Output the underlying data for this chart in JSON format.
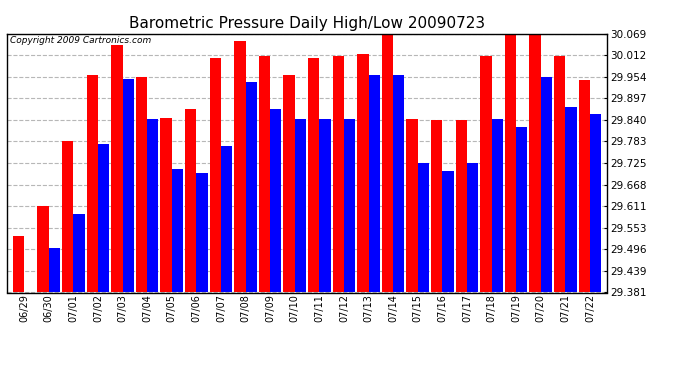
{
  "title": "Barometric Pressure Daily High/Low 20090723",
  "copyright": "Copyright 2009 Cartronics.com",
  "dates": [
    "06/29",
    "06/30",
    "07/01",
    "07/02",
    "07/03",
    "07/04",
    "07/05",
    "07/06",
    "07/07",
    "07/08",
    "07/09",
    "07/10",
    "07/11",
    "07/12",
    "07/13",
    "07/14",
    "07/15",
    "07/16",
    "07/17",
    "07/18",
    "07/19",
    "07/20",
    "07/21",
    "07/22"
  ],
  "highs": [
    29.53,
    29.61,
    29.783,
    29.96,
    30.04,
    29.955,
    29.845,
    29.87,
    30.005,
    30.05,
    30.01,
    29.96,
    30.005,
    30.01,
    30.015,
    30.08,
    29.843,
    29.84,
    29.84,
    30.01,
    30.075,
    30.065,
    30.01,
    29.945
  ],
  "lows": [
    29.381,
    29.5,
    29.59,
    29.775,
    29.95,
    29.843,
    29.71,
    29.7,
    29.77,
    29.94,
    29.87,
    29.843,
    29.843,
    29.843,
    29.96,
    29.96,
    29.725,
    29.703,
    29.725,
    29.843,
    29.82,
    29.955,
    29.875,
    29.855
  ],
  "y_ticks": [
    29.381,
    29.439,
    29.496,
    29.553,
    29.611,
    29.668,
    29.725,
    29.783,
    29.84,
    29.897,
    29.954,
    30.012,
    30.069
  ],
  "ymin": 29.381,
  "ymax": 30.069,
  "bar_width": 0.46,
  "high_color": "#ff0000",
  "low_color": "#0000ff",
  "bg_color": "#ffffff",
  "grid_color": "#b0b0b0",
  "title_fontsize": 11,
  "copyright_fontsize": 6.5,
  "tick_fontsize": 7,
  "ytick_fontsize": 7.5
}
